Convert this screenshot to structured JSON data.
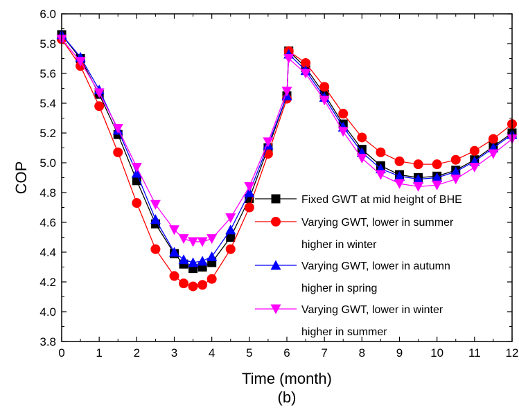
{
  "chart_data": {
    "type": "line",
    "caption": "(b)",
    "xlabel": "Time (month)",
    "ylabel": "COP",
    "xlim": [
      0,
      12
    ],
    "ylim": [
      3.8,
      6.0
    ],
    "xticks": [
      "0",
      "1",
      "2",
      "3",
      "4",
      "5",
      "6",
      "7",
      "8",
      "9",
      "10",
      "11",
      "12"
    ],
    "yticks": [
      "3.8",
      "4.0",
      "4.2",
      "4.4",
      "4.6",
      "4.8",
      "5.0",
      "5.2",
      "5.4",
      "5.6",
      "5.8",
      "6.0"
    ],
    "grid": false,
    "legend_position": "center-right",
    "series": [
      {
        "name": "Fixed GWT at mid height of BHE",
        "color": "#000000",
        "marker": "square",
        "x": [
          0,
          0.5,
          1,
          1.5,
          2,
          2.5,
          3,
          3.25,
          3.5,
          3.75,
          4,
          4.5,
          5,
          5.5,
          6,
          6.05,
          6.5,
          7,
          7.5,
          8,
          8.5,
          9,
          9.5,
          10,
          10.5,
          11,
          11.5,
          12
        ],
        "y": [
          5.86,
          5.7,
          5.46,
          5.19,
          4.88,
          4.59,
          4.39,
          4.32,
          4.29,
          4.3,
          4.33,
          4.5,
          4.76,
          5.1,
          5.45,
          5.75,
          5.64,
          5.46,
          5.26,
          5.09,
          4.98,
          4.92,
          4.9,
          4.91,
          4.95,
          5.02,
          5.11,
          5.2
        ]
      },
      {
        "name": "Varying GWT, lower in summer",
        "name_line2": "higher in winter",
        "color": "#ff0000",
        "marker": "circle",
        "x": [
          0,
          0.5,
          1,
          1.5,
          2,
          2.5,
          3,
          3.25,
          3.5,
          3.75,
          4,
          4.5,
          5,
          5.5,
          6,
          6.05,
          6.5,
          7,
          7.5,
          8,
          8.5,
          9,
          9.5,
          10,
          10.5,
          11,
          11.5,
          12
        ],
        "y": [
          5.83,
          5.65,
          5.38,
          5.07,
          4.73,
          4.42,
          4.24,
          4.19,
          4.17,
          4.18,
          4.22,
          4.42,
          4.7,
          5.06,
          5.43,
          5.75,
          5.67,
          5.51,
          5.33,
          5.17,
          5.07,
          5.01,
          4.99,
          4.99,
          5.02,
          5.08,
          5.16,
          5.26
        ]
      },
      {
        "name": "Varying GWT, lower in autumn",
        "name_line2": "higher in spring",
        "color": "#0000ff",
        "marker": "triangle-up",
        "x": [
          0,
          0.5,
          1,
          1.5,
          2,
          2.5,
          3,
          3.25,
          3.5,
          3.75,
          4,
          4.5,
          5,
          5.5,
          6,
          6.05,
          6.5,
          7,
          7.5,
          8,
          8.5,
          9,
          9.5,
          10,
          10.5,
          11,
          11.5,
          12
        ],
        "y": [
          5.86,
          5.71,
          5.49,
          5.22,
          4.93,
          4.62,
          4.4,
          4.35,
          4.33,
          4.34,
          4.37,
          4.55,
          4.8,
          5.12,
          5.45,
          5.73,
          5.62,
          5.44,
          5.24,
          5.07,
          4.96,
          4.91,
          4.89,
          4.9,
          4.94,
          5.01,
          5.1,
          5.19
        ]
      },
      {
        "name": "Varying GWT, lower in winter",
        "name_line2": "higher in summer",
        "color": "#ff00ff",
        "marker": "triangle-down",
        "x": [
          0,
          0.5,
          1,
          1.5,
          2,
          2.5,
          3,
          3.25,
          3.5,
          3.75,
          4,
          4.5,
          5,
          5.5,
          6,
          6.05,
          6.5,
          7,
          7.5,
          8,
          8.5,
          9,
          9.5,
          10,
          10.5,
          11,
          11.5,
          12
        ],
        "y": [
          5.83,
          5.68,
          5.47,
          5.23,
          4.97,
          4.72,
          4.55,
          4.49,
          4.47,
          4.47,
          4.49,
          4.63,
          4.84,
          5.14,
          5.48,
          5.7,
          5.6,
          5.42,
          5.21,
          5.03,
          4.92,
          4.86,
          4.84,
          4.85,
          4.89,
          4.97,
          5.06,
          5.16
        ]
      }
    ]
  }
}
